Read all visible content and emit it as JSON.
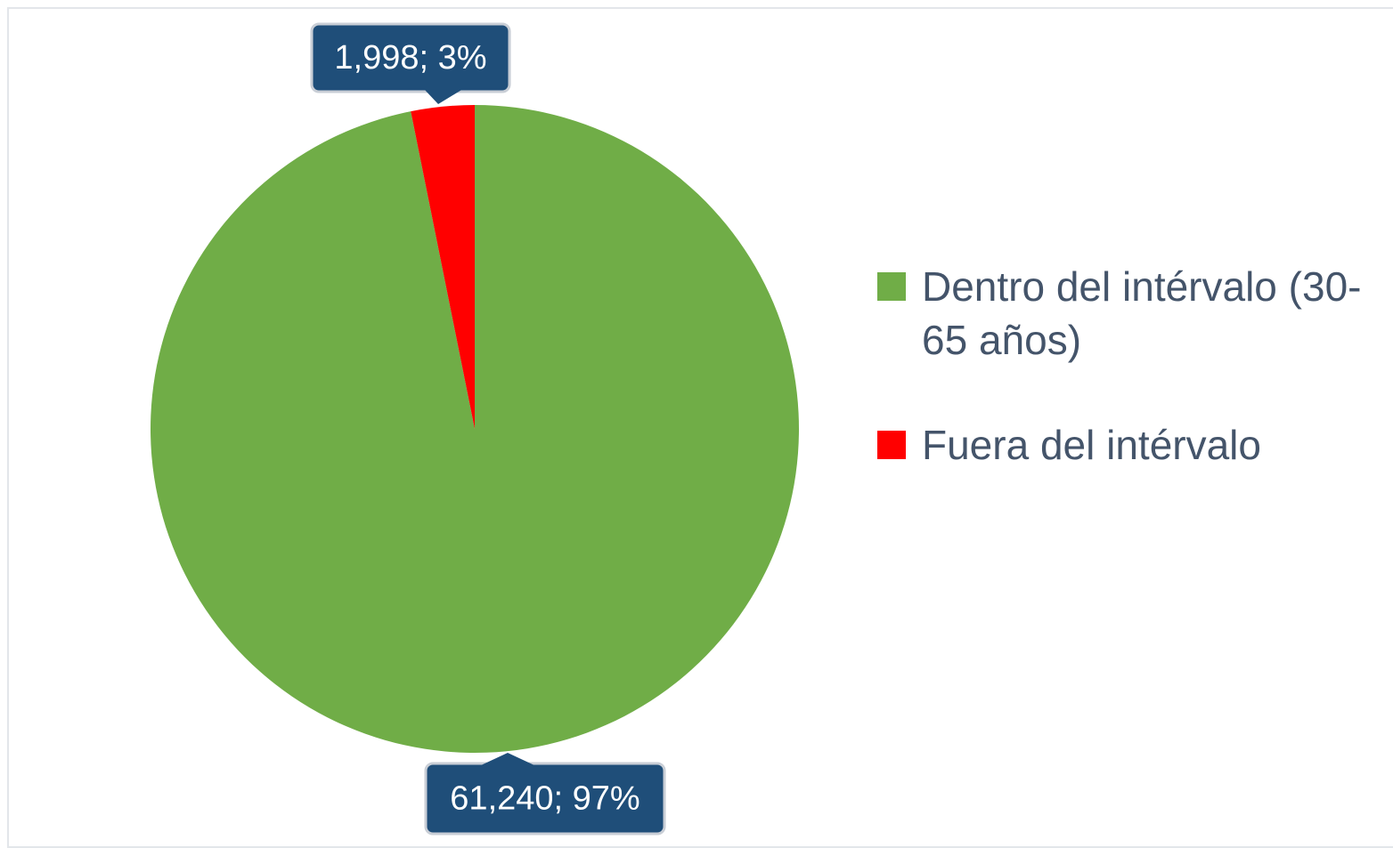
{
  "chart_data": {
    "type": "pie",
    "categories": [
      "Dentro del intérvalo (30-65 años)",
      "Fuera del intérvalo"
    ],
    "values": [
      61240,
      1998
    ],
    "value_labels": [
      "61,240; 97%",
      "1,998; 3%"
    ],
    "colors": [
      "#70ad47",
      "#ff0000"
    ],
    "legend": "right"
  }
}
